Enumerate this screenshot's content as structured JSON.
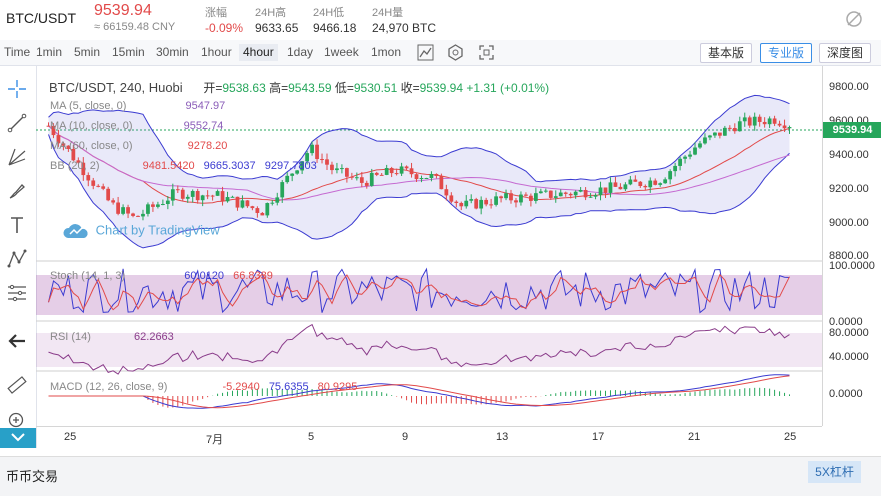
{
  "ticker": {
    "pair": "BTC/USDT",
    "last_price": "9539.94",
    "cny": "≈ 66159.48 CNY",
    "change_label": "涨幅",
    "change_value": "-0.09%",
    "high_label": "24H高",
    "high_value": "9633.65",
    "low_label": "24H低",
    "low_value": "9466.18",
    "vol_label": "24H量",
    "vol_value": "24,970 BTC",
    "colors": {
      "down": "#e24a4a",
      "up": "#26a65b"
    }
  },
  "toolbar": {
    "timeframes": [
      "Time",
      "1min",
      "5min",
      "15min",
      "30min",
      "1hour",
      "4hour",
      "1day",
      "1week",
      "1mon"
    ],
    "active_timeframe": "4hour",
    "basic_view": "基本版",
    "pro_view": "专业版",
    "depth_view": "深度图"
  },
  "chart": {
    "symbol_title": "BTC/USDT, 240, Huobi",
    "open_label": "开=",
    "open_value": "9538.63",
    "high_label": "高=",
    "high_value": "9543.59",
    "low_label": "低=",
    "low_value": "9530.51",
    "close_label": "收=",
    "close_value": "9539.94",
    "change": "+1.31 (+0.01%)",
    "ma5_label": "MA (5, close, 0)",
    "ma5_value": "9547.97",
    "ma10_label": "MA (10, close, 0)",
    "ma10_value": "9552.74",
    "ma60_label": "MA (60, close, 0)",
    "ma60_value": "9278.20",
    "bb_label": "BB (20, 2)",
    "bb_values": [
      "9481.5420",
      "9665.3037",
      "9297.7803"
    ],
    "watermark": "Chart by TradingView",
    "current_price_tag": "9539.94",
    "stoch_label": "Stoch (14, 1, 3)",
    "stoch_values": [
      "60.0120",
      "66.8339"
    ],
    "rsi_label": "RSI (14)",
    "rsi_value": "62.2663",
    "macd_label": "MACD (12, 26, close, 9)",
    "macd_values": [
      "-5.2940",
      "75.6355",
      "80.9295"
    ],
    "price_axis": [
      "9800.00",
      "9600.00",
      "9400.00",
      "9200.00",
      "9000.00",
      "8800.00"
    ],
    "stoch_axis": [
      "100.0000",
      "0.0000"
    ],
    "rsi_axis": [
      "80.0000",
      "40.0000"
    ],
    "macd_axis": [
      "0.0000"
    ],
    "time_axis": [
      "25",
      "7月",
      "5",
      "9",
      "13",
      "17",
      "21",
      "25"
    ]
  },
  "bottom": {
    "spot_tab": "币币交易",
    "leverage_button": "5X杠杆"
  }
}
